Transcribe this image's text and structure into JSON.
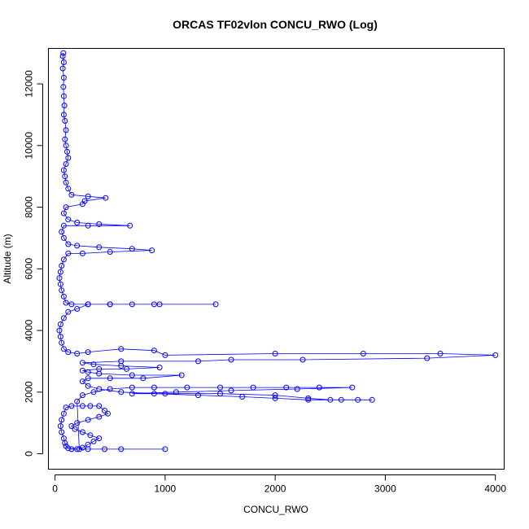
{
  "chart_data": {
    "type": "scatter",
    "title": "ORCAS TF02vlon CONCU_RWO (Log)",
    "xlabel": "CONCU_RWO",
    "ylabel": "Altitude (m)",
    "xlim": [
      -60,
      4080
    ],
    "ylim": [
      -500,
      13150
    ],
    "xticks": [
      0,
      1000,
      2000,
      3000,
      4000
    ],
    "yticks": [
      0,
      2000,
      4000,
      6000,
      8000,
      10000,
      12000
    ],
    "color": "#0000ff",
    "marker": "open-circle",
    "connect_points": true,
    "series": [
      {
        "points": [
          [
            150,
            150
          ],
          [
            300,
            150
          ],
          [
            600,
            150
          ],
          [
            1000,
            150
          ],
          [
            450,
            150
          ],
          [
            200,
            150
          ],
          [
            120,
            180
          ],
          [
            100,
            250
          ],
          [
            90,
            350
          ],
          [
            80,
            500
          ],
          [
            60,
            700
          ],
          [
            50,
            900
          ],
          [
            60,
            1100
          ],
          [
            80,
            1300
          ],
          [
            100,
            1500
          ],
          [
            150,
            1550
          ],
          [
            250,
            1550
          ],
          [
            320,
            1550
          ],
          [
            400,
            1550
          ],
          [
            450,
            1400
          ],
          [
            480,
            1300
          ],
          [
            400,
            1200
          ],
          [
            300,
            1100
          ],
          [
            200,
            1000
          ],
          [
            150,
            900
          ],
          [
            180,
            800
          ],
          [
            250,
            700
          ],
          [
            320,
            600
          ],
          [
            400,
            500
          ],
          [
            350,
            400
          ],
          [
            300,
            300
          ],
          [
            250,
            200
          ],
          [
            220,
            150
          ],
          [
            200,
            1700
          ],
          [
            250,
            1900
          ],
          [
            350,
            2000
          ],
          [
            500,
            2100
          ],
          [
            700,
            2150
          ],
          [
            900,
            2150
          ],
          [
            1200,
            2150
          ],
          [
            1500,
            2150
          ],
          [
            1800,
            2150
          ],
          [
            2100,
            2150
          ],
          [
            2400,
            2150
          ],
          [
            2700,
            2150
          ],
          [
            2200,
            2100
          ],
          [
            1600,
            2050
          ],
          [
            1100,
            2000
          ],
          [
            700,
            1950
          ],
          [
            1000,
            1950
          ],
          [
            1500,
            1950
          ],
          [
            2000,
            1900
          ],
          [
            2300,
            1800
          ],
          [
            2500,
            1750
          ],
          [
            2750,
            1750
          ],
          [
            2880,
            1750
          ],
          [
            2600,
            1750
          ],
          [
            2300,
            1750
          ],
          [
            2000,
            1800
          ],
          [
            1700,
            1850
          ],
          [
            1300,
            1900
          ],
          [
            900,
            1950
          ],
          [
            600,
            2000
          ],
          [
            400,
            2100
          ],
          [
            300,
            2200
          ],
          [
            250,
            2350
          ],
          [
            300,
            2450
          ],
          [
            500,
            2450
          ],
          [
            800,
            2450
          ],
          [
            1150,
            2550
          ],
          [
            700,
            2550
          ],
          [
            400,
            2600
          ],
          [
            300,
            2650
          ],
          [
            250,
            2700
          ],
          [
            400,
            2750
          ],
          [
            650,
            2750
          ],
          [
            950,
            2800
          ],
          [
            600,
            2850
          ],
          [
            350,
            2900
          ],
          [
            250,
            2950
          ],
          [
            600,
            3000
          ],
          [
            1300,
            3000
          ],
          [
            1600,
            3050
          ],
          [
            2250,
            3050
          ],
          [
            3380,
            3100
          ],
          [
            4000,
            3200
          ],
          [
            3500,
            3250
          ],
          [
            2800,
            3250
          ],
          [
            2000,
            3250
          ],
          [
            1000,
            3200
          ],
          [
            900,
            3350
          ],
          [
            600,
            3400
          ],
          [
            300,
            3300
          ],
          [
            200,
            3250
          ],
          [
            120,
            3300
          ],
          [
            80,
            3400
          ],
          [
            60,
            3600
          ],
          [
            50,
            3800
          ],
          [
            40,
            4000
          ],
          [
            50,
            4200
          ],
          [
            80,
            4400
          ],
          [
            120,
            4600
          ],
          [
            200,
            4700
          ],
          [
            300,
            4850
          ],
          [
            500,
            4850
          ],
          [
            700,
            4850
          ],
          [
            950,
            4850
          ],
          [
            1460,
            4850
          ],
          [
            900,
            4850
          ],
          [
            500,
            4850
          ],
          [
            300,
            4850
          ],
          [
            150,
            4850
          ],
          [
            100,
            4900
          ],
          [
            80,
            5100
          ],
          [
            60,
            5300
          ],
          [
            50,
            5500
          ],
          [
            40,
            5700
          ],
          [
            50,
            5900
          ],
          [
            60,
            6100
          ],
          [
            80,
            6300
          ],
          [
            120,
            6500
          ],
          [
            250,
            6500
          ],
          [
            500,
            6550
          ],
          [
            880,
            6600
          ],
          [
            700,
            6650
          ],
          [
            400,
            6700
          ],
          [
            200,
            6750
          ],
          [
            120,
            6800
          ],
          [
            80,
            7000
          ],
          [
            60,
            7200
          ],
          [
            80,
            7400
          ],
          [
            300,
            7400
          ],
          [
            680,
            7400
          ],
          [
            400,
            7450
          ],
          [
            200,
            7500
          ],
          [
            120,
            7600
          ],
          [
            80,
            7800
          ],
          [
            100,
            8000
          ],
          [
            250,
            8100
          ],
          [
            270,
            8200
          ],
          [
            460,
            8300
          ],
          [
            300,
            8350
          ],
          [
            150,
            8400
          ],
          [
            120,
            8600
          ],
          [
            100,
            8800
          ],
          [
            90,
            9000
          ],
          [
            80,
            9200
          ],
          [
            100,
            9400
          ],
          [
            120,
            9600
          ],
          [
            110,
            9800
          ],
          [
            100,
            10000
          ],
          [
            90,
            10200
          ],
          [
            100,
            10500
          ],
          [
            90,
            10800
          ],
          [
            80,
            11000
          ],
          [
            85,
            11300
          ],
          [
            80,
            11600
          ],
          [
            75,
            11900
          ],
          [
            80,
            12200
          ],
          [
            70,
            12500
          ],
          [
            80,
            12700
          ],
          [
            70,
            12900
          ],
          [
            75,
            13000
          ]
        ]
      }
    ]
  }
}
